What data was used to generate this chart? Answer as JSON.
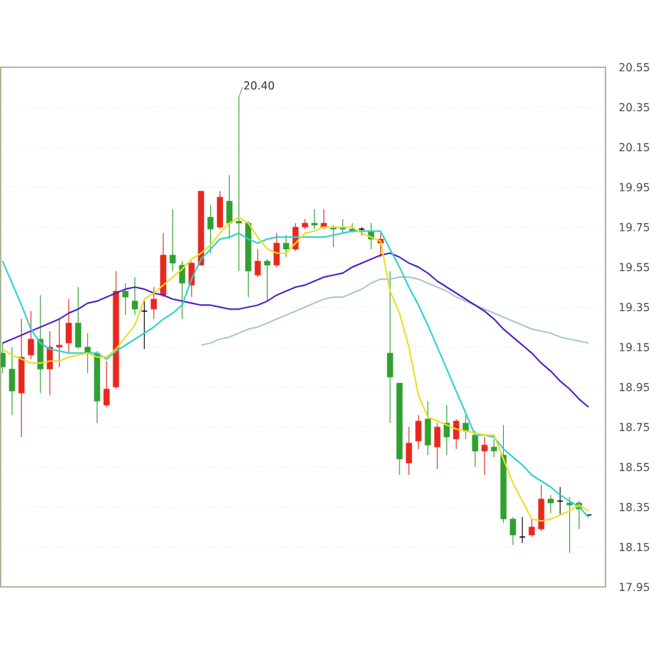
{
  "chart_data": {
    "type": "candlestick",
    "categories": [
      null,
      null,
      null,
      null,
      null,
      null,
      null,
      null,
      null,
      null,
      null,
      null,
      null,
      null,
      null,
      null,
      null,
      null,
      null,
      null,
      null,
      null,
      null,
      null,
      null,
      null,
      null,
      null,
      null,
      null,
      null,
      null,
      null,
      null,
      null,
      null,
      null,
      null,
      null,
      null,
      null,
      null,
      null,
      null,
      null,
      null,
      null,
      null,
      null,
      null,
      null,
      null,
      null,
      null,
      null,
      null,
      null,
      null,
      null,
      null,
      null,
      null,
      null
    ],
    "ohlc": [
      [
        19.12,
        19.17,
        19.02,
        19.05
      ],
      [
        19.04,
        19.15,
        18.81,
        18.93
      ],
      [
        18.92,
        19.29,
        18.7,
        19.1
      ],
      [
        19.11,
        19.33,
        19.09,
        19.19
      ],
      [
        19.19,
        19.41,
        18.92,
        19.04
      ],
      [
        19.04,
        19.23,
        18.91,
        19.15
      ],
      [
        19.15,
        19.29,
        19.05,
        19.16
      ],
      [
        19.17,
        19.39,
        19.12,
        19.27
      ],
      [
        19.27,
        19.45,
        19.14,
        19.15
      ],
      [
        19.15,
        19.22,
        19.02,
        19.12
      ],
      [
        19.12,
        19.13,
        18.77,
        18.88
      ],
      [
        18.86,
        19.08,
        18.85,
        18.94
      ],
      [
        18.95,
        19.53,
        18.94,
        19.43
      ],
      [
        19.43,
        19.47,
        19.31,
        19.4
      ],
      [
        19.38,
        19.5,
        19.31,
        19.34
      ],
      [
        19.33,
        19.38,
        19.14,
        19.33
      ],
      [
        19.34,
        19.45,
        19.29,
        19.39
      ],
      [
        19.41,
        19.72,
        19.4,
        19.61
      ],
      [
        19.61,
        19.84,
        19.53,
        19.57
      ],
      [
        19.56,
        19.58,
        19.29,
        19.47
      ],
      [
        19.46,
        19.58,
        19.4,
        19.57
      ],
      [
        19.56,
        19.93,
        19.56,
        19.93
      ],
      [
        19.8,
        19.86,
        19.62,
        19.74
      ],
      [
        19.75,
        19.93,
        19.74,
        19.9
      ],
      [
        19.88,
        20.01,
        19.69,
        19.77
      ],
      [
        19.78,
        20.4,
        19.53,
        19.77
      ],
      [
        19.77,
        19.78,
        19.4,
        19.53
      ],
      [
        19.51,
        19.64,
        19.5,
        19.58
      ],
      [
        19.58,
        19.59,
        19.38,
        19.56
      ],
      [
        19.56,
        19.72,
        19.55,
        19.67
      ],
      [
        19.67,
        19.71,
        19.6,
        19.64
      ],
      [
        19.64,
        19.77,
        19.63,
        19.75
      ],
      [
        19.75,
        19.79,
        19.74,
        19.77
      ],
      [
        19.77,
        19.84,
        19.74,
        19.76
      ],
      [
        19.75,
        19.84,
        19.74,
        19.77
      ],
      [
        19.75,
        19.76,
        19.65,
        19.74
      ],
      [
        19.75,
        19.79,
        19.72,
        19.74
      ],
      [
        19.74,
        19.77,
        19.72,
        19.73
      ],
      [
        19.74,
        19.75,
        19.71,
        19.74
      ],
      [
        19.73,
        19.77,
        19.64,
        19.69
      ],
      [
        19.67,
        19.72,
        19.6,
        19.69
      ],
      [
        19.12,
        19.53,
        18.77,
        19.0
      ],
      [
        18.97,
        18.97,
        18.51,
        18.59
      ],
      [
        18.57,
        18.75,
        18.51,
        18.67
      ],
      [
        18.68,
        18.81,
        18.64,
        18.78
      ],
      [
        18.79,
        18.88,
        18.61,
        18.66
      ],
      [
        18.65,
        18.77,
        18.54,
        18.75
      ],
      [
        18.77,
        18.86,
        18.61,
        18.7
      ],
      [
        18.69,
        18.79,
        18.64,
        18.78
      ],
      [
        18.77,
        18.81,
        18.69,
        18.73
      ],
      [
        18.71,
        18.73,
        18.55,
        18.63
      ],
      [
        18.63,
        18.7,
        18.51,
        18.66
      ],
      [
        18.65,
        18.69,
        18.6,
        18.63
      ],
      [
        18.61,
        18.76,
        18.27,
        18.29
      ],
      [
        18.29,
        18.3,
        18.16,
        18.21
      ],
      [
        18.2,
        18.3,
        18.17,
        18.2
      ],
      [
        18.21,
        18.29,
        18.2,
        18.25
      ],
      [
        18.24,
        18.46,
        18.23,
        18.39
      ],
      [
        18.39,
        18.41,
        18.32,
        18.37
      ],
      [
        18.38,
        18.45,
        18.31,
        18.38
      ],
      [
        18.37,
        18.4,
        18.12,
        18.36
      ],
      [
        18.37,
        18.38,
        18.24,
        18.34
      ],
      [
        18.31,
        18.31,
        18.31,
        18.31
      ]
    ],
    "colors": [
      "#30a030",
      "#30a030",
      "#e8281e",
      "#e8281e",
      "#30a030",
      "#e8281e",
      "#e8281e",
      "#e8281e",
      "#30a030",
      "#30a030",
      "#30a030",
      "#e8281e",
      "#e8281e",
      "#30a030",
      "#30a030",
      "#000000",
      "#e8281e",
      "#e8281e",
      "#30a030",
      "#30a030",
      "#e8281e",
      "#e8281e",
      "#30a030",
      "#e8281e",
      "#30a030",
      "#30a030",
      "#30a030",
      "#e8281e",
      "#30a030",
      "#e8281e",
      "#30a030",
      "#e8281e",
      "#e8281e",
      "#30a030",
      "#e8281e",
      "#30a030",
      "#30a030",
      "#30a030",
      "#000000",
      "#30a030",
      "#e8281e",
      "#30a030",
      "#30a030",
      "#e8281e",
      "#e8281e",
      "#30a030",
      "#e8281e",
      "#30a030",
      "#e8281e",
      "#30a030",
      "#30a030",
      "#e8281e",
      "#30a030",
      "#30a030",
      "#30a030",
      "#000000",
      "#e8281e",
      "#e8281e",
      "#30a030",
      "#000000",
      "#30a030",
      "#30a030",
      "#000000"
    ],
    "series": [
      {
        "type": "line",
        "color": "#a8c8d0",
        "values": [
          null,
          null,
          null,
          null,
          null,
          null,
          null,
          null,
          null,
          null,
          null,
          null,
          null,
          null,
          null,
          null,
          null,
          null,
          null,
          null,
          null,
          19.16,
          19.17,
          19.19,
          19.2,
          19.22,
          19.24,
          19.25,
          19.27,
          19.29,
          19.31,
          19.33,
          19.35,
          19.37,
          19.39,
          19.4,
          19.4,
          19.42,
          19.44,
          19.47,
          19.49,
          19.49,
          19.5,
          19.5,
          19.49,
          19.47,
          19.45,
          19.43,
          19.4,
          19.38,
          19.36,
          19.34,
          19.32,
          19.3,
          19.28,
          19.26,
          19.24,
          19.23,
          19.22,
          19.2,
          19.19,
          19.18,
          19.17
        ]
      },
      {
        "type": "line",
        "color": "#5020c0",
        "values": [
          19.17,
          19.19,
          19.21,
          19.23,
          19.25,
          19.27,
          19.29,
          19.32,
          19.34,
          19.37,
          19.38,
          19.4,
          19.42,
          19.44,
          19.45,
          19.44,
          19.42,
          19.41,
          19.39,
          19.38,
          19.37,
          19.36,
          19.36,
          19.35,
          19.34,
          19.34,
          19.35,
          19.36,
          19.38,
          19.41,
          19.43,
          19.45,
          19.46,
          19.48,
          19.5,
          19.51,
          19.52,
          19.55,
          19.57,
          19.59,
          19.61,
          19.62,
          19.6,
          19.57,
          19.55,
          19.52,
          19.48,
          19.45,
          19.42,
          19.39,
          19.36,
          19.33,
          19.29,
          19.24,
          19.2,
          19.16,
          19.12,
          19.07,
          19.03,
          18.98,
          18.94,
          18.89,
          18.85
        ]
      },
      {
        "type": "line",
        "color": "#30d0d0",
        "values": [
          19.58,
          19.47,
          19.36,
          19.24,
          19.17,
          19.14,
          19.13,
          19.12,
          19.12,
          19.12,
          19.12,
          19.09,
          19.13,
          19.16,
          19.19,
          19.22,
          19.25,
          19.29,
          19.32,
          19.36,
          19.49,
          19.59,
          19.64,
          19.69,
          19.7,
          19.72,
          19.69,
          19.67,
          19.69,
          19.7,
          19.7,
          19.7,
          19.7,
          19.7,
          19.7,
          19.71,
          19.72,
          19.73,
          19.73,
          19.73,
          19.73,
          19.64,
          19.55,
          19.45,
          19.36,
          19.26,
          19.15,
          19.04,
          18.93,
          18.82,
          18.71,
          18.71,
          18.7,
          18.64,
          18.6,
          18.56,
          18.51,
          18.48,
          18.45,
          18.41,
          18.38,
          18.35,
          18.3
        ]
      },
      {
        "type": "line",
        "color": "#e8e020",
        "values": [
          19.14,
          19.11,
          19.09,
          19.07,
          19.07,
          19.08,
          19.08,
          19.1,
          19.11,
          19.12,
          19.1,
          19.1,
          19.14,
          19.2,
          19.26,
          19.39,
          19.42,
          19.46,
          19.5,
          19.54,
          19.59,
          19.62,
          19.66,
          19.72,
          19.77,
          19.8,
          19.77,
          19.7,
          19.64,
          19.62,
          19.62,
          19.67,
          19.72,
          19.73,
          19.75,
          19.75,
          19.75,
          19.75,
          19.72,
          19.7,
          19.68,
          19.43,
          19.32,
          19.15,
          18.91,
          18.8,
          18.78,
          18.76,
          18.74,
          18.73,
          18.72,
          18.71,
          18.71,
          18.59,
          18.47,
          18.38,
          18.29,
          18.28,
          18.29,
          18.31,
          18.33,
          18.36,
          18.33
        ]
      }
    ],
    "annotations": [
      "20.40"
    ],
    "ylim": [
      17.95,
      20.55
    ],
    "yticks": [
      17.95,
      18.15,
      18.35,
      18.55,
      18.75,
      18.95,
      19.15,
      19.35,
      19.55,
      19.75,
      19.95,
      20.15,
      20.35,
      20.55
    ],
    "grid": "y",
    "tick_labels": "y"
  }
}
